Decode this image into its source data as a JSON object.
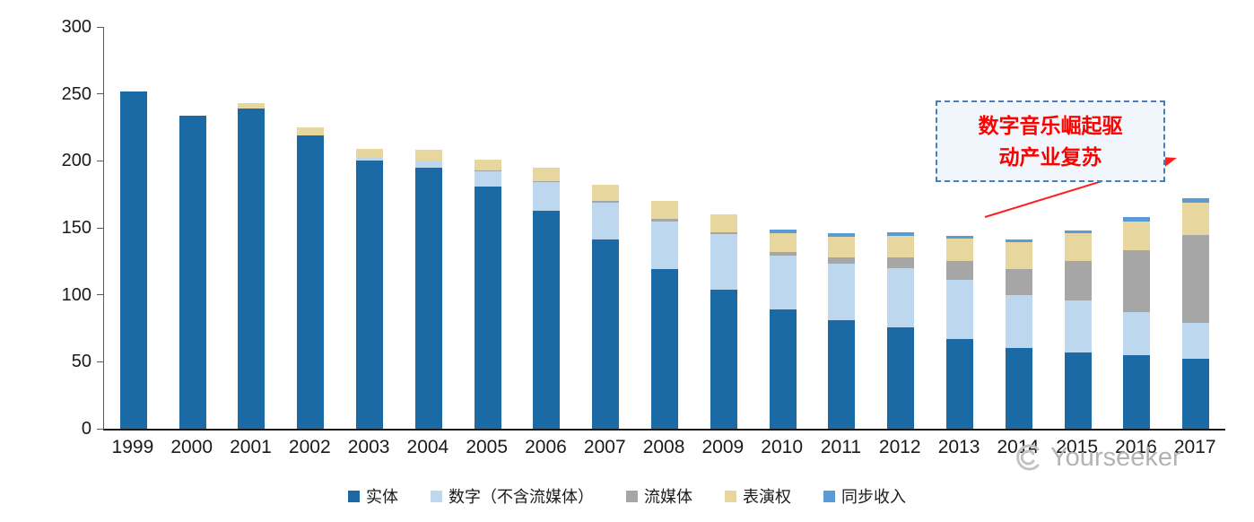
{
  "chart_data": {
    "type": "bar",
    "stacked": true,
    "title": "",
    "xlabel": "",
    "ylabel": "",
    "ylim": [
      0,
      300
    ],
    "yticks": [
      0,
      50,
      100,
      150,
      200,
      250,
      300
    ],
    "grid": false,
    "legend_position": "bottom",
    "categories": [
      "1999",
      "2000",
      "2001",
      "2002",
      "2003",
      "2004",
      "2005",
      "2006",
      "2007",
      "2008",
      "2009",
      "2010",
      "2011",
      "2012",
      "2013",
      "2014",
      "2015",
      "2016",
      "2017"
    ],
    "series": [
      {
        "name": "实体",
        "color": "#1b6aa5",
        "values": [
          252,
          234,
          239,
          219,
          200,
          195,
          181,
          163,
          141,
          119,
          104,
          89,
          81,
          76,
          67,
          60,
          57,
          55,
          52
        ]
      },
      {
        "name": "数字（不含流媒体）",
        "color": "#bdd7ee",
        "values": [
          0,
          0,
          0,
          0,
          3,
          5,
          11,
          21,
          28,
          36,
          41,
          40,
          42,
          44,
          44,
          40,
          39,
          32,
          27
        ]
      },
      {
        "name": "流媒体",
        "color": "#a6a6a6",
        "values": [
          0,
          0,
          0,
          0,
          0,
          0,
          1,
          1,
          1,
          2,
          2,
          3,
          5,
          8,
          14,
          19,
          29,
          46,
          66
        ]
      },
      {
        "name": "表演权",
        "color": "#e7d79f",
        "values": [
          0,
          0,
          4,
          6,
          6,
          8,
          8,
          10,
          12,
          13,
          13,
          14,
          15,
          16,
          17,
          20,
          21,
          22,
          24
        ]
      },
      {
        "name": "同步收入",
        "color": "#5b9bd5",
        "values": [
          0,
          0,
          0,
          0,
          0,
          0,
          0,
          0,
          0,
          0,
          0,
          3,
          3,
          3,
          2,
          2,
          2,
          3,
          3
        ]
      }
    ]
  },
  "annotation": {
    "lines": [
      "数字音乐崛起驱",
      "动产业复苏"
    ],
    "text_color": "#fe0000",
    "border_color": "#4a7ebb",
    "arrow_color": "#fe2020"
  },
  "watermark": {
    "text": "Yourseeker",
    "color": "#b3b3b3"
  }
}
